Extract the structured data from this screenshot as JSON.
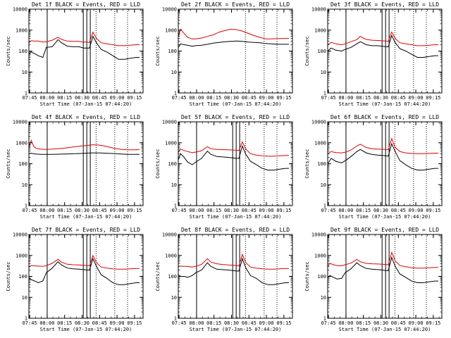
{
  "colors": {
    "events": "#000000",
    "lld": "#e00000",
    "axes": "#000000",
    "background": "#ffffff"
  },
  "figure": {
    "ylabel": "Counts/sec",
    "xlabel": "Start Time (07-Jan-15 07:44:20)",
    "x_tick_labels": [
      "07:45",
      "08:00",
      "08:15",
      "08:30",
      "08:45",
      "09:00",
      "09:15"
    ],
    "y_tick_labels": [
      "1",
      "10",
      "100",
      "1000",
      "10000"
    ]
  },
  "chart_data": [
    {
      "type": "line",
      "title": "Det 1f BLACK = Events, RED = LLD",
      "x_unit": "minutes after 07:44:20",
      "xlim": [
        0,
        98
      ],
      "yscale": "log",
      "ylim": [
        1,
        10000
      ],
      "x": [
        0,
        2,
        5,
        8,
        12,
        15,
        20,
        25,
        28,
        33,
        38,
        43,
        47,
        50,
        52,
        55,
        58,
        62,
        67,
        72,
        77,
        82,
        87,
        92,
        95
      ],
      "series": [
        {
          "name": "Events",
          "color": "#000000",
          "values": [
            70,
            90,
            75,
            60,
            50,
            150,
            160,
            350,
            250,
            170,
            160,
            160,
            140,
            140,
            140,
            500,
            250,
            120,
            90,
            60,
            40,
            40,
            45,
            50,
            50
          ]
        },
        {
          "name": "LLD",
          "color": "#e00000",
          "values": [
            250,
            310,
            300,
            300,
            270,
            280,
            330,
            460,
            360,
            300,
            290,
            290,
            270,
            270,
            260,
            800,
            400,
            250,
            220,
            200,
            180,
            180,
            190,
            200,
            200
          ]
        }
      ],
      "vlines_solid": [
        15.7,
        46.7,
        49.7,
        52.7
      ],
      "vlines_dashed": [
        57.7,
        73.7,
        84.7
      ]
    },
    {
      "type": "line",
      "title": "Det 2f BLACK = Events, RED = LLD",
      "x_unit": "minutes after 07:44:20",
      "xlim": [
        0,
        98
      ],
      "yscale": "log",
      "ylim": [
        1,
        10000
      ],
      "x": [
        0,
        2,
        5,
        8,
        12,
        15,
        20,
        25,
        30,
        35,
        40,
        45,
        50,
        55,
        60,
        65,
        70,
        75,
        80,
        85,
        90,
        95
      ],
      "series": [
        {
          "name": "Events",
          "color": "#000000",
          "values": [
            150,
            220,
            200,
            190,
            170,
            180,
            190,
            210,
            240,
            260,
            280,
            290,
            300,
            290,
            270,
            260,
            250,
            230,
            220,
            210,
            210,
            210
          ]
        },
        {
          "name": "LLD",
          "color": "#e00000",
          "values": [
            500,
            1100,
            700,
            450,
            380,
            380,
            420,
            500,
            600,
            800,
            950,
            1100,
            1050,
            900,
            700,
            550,
            450,
            380,
            380,
            390,
            400,
            400
          ]
        }
      ],
      "vlines_solid": [],
      "vlines_dashed": [
        57.7,
        73.7,
        84.7
      ]
    },
    {
      "type": "line",
      "title": "Det 3f BLACK = Events, RED = LLD",
      "x_unit": "minutes after 07:44:20",
      "xlim": [
        0,
        98
      ],
      "yscale": "log",
      "ylim": [
        1,
        10000
      ],
      "x": [
        0,
        3,
        7,
        12,
        15,
        20,
        25,
        28,
        33,
        38,
        43,
        47,
        50,
        52,
        55,
        58,
        62,
        67,
        72,
        77,
        82,
        87,
        92,
        95
      ],
      "series": [
        {
          "name": "Events",
          "color": "#000000",
          "values": [
            100,
            140,
            110,
            100,
            120,
            150,
            220,
            280,
            200,
            180,
            180,
            170,
            160,
            160,
            550,
            250,
            130,
            100,
            70,
            50,
            50,
            55,
            60,
            60
          ]
        },
        {
          "name": "LLD",
          "color": "#e00000",
          "values": [
            200,
            260,
            220,
            200,
            220,
            280,
            350,
            500,
            360,
            330,
            320,
            310,
            300,
            290,
            800,
            400,
            250,
            220,
            200,
            180,
            180,
            190,
            200,
            200
          ]
        }
      ],
      "vlines_solid": [
        15.7,
        46.7,
        49.7,
        52.7
      ],
      "vlines_dashed": [
        57.7,
        73.7,
        84.7
      ]
    },
    {
      "type": "line",
      "title": "Det 4f BLACK = Events, RED = LLD",
      "x_unit": "minutes after 07:44:20",
      "xlim": [
        0,
        98
      ],
      "yscale": "log",
      "ylim": [
        1,
        10000
      ],
      "x": [
        0,
        2,
        4,
        6,
        10,
        15,
        20,
        30,
        40,
        50,
        55,
        60,
        65,
        70,
        75,
        80,
        85,
        90,
        95
      ],
      "series": [
        {
          "name": "Events",
          "color": "#000000",
          "values": [
            300,
            320,
            300,
            290,
            280,
            280,
            280,
            290,
            300,
            320,
            330,
            330,
            320,
            310,
            300,
            290,
            280,
            280,
            280
          ]
        },
        {
          "name": "LLD",
          "color": "#e00000",
          "values": [
            600,
            1300,
            700,
            550,
            500,
            480,
            500,
            550,
            650,
            750,
            800,
            780,
            700,
            600,
            520,
            480,
            460,
            460,
            470
          ]
        }
      ],
      "vlines_solid": [
        15.7,
        46.7,
        49.7,
        52.7
      ],
      "vlines_dashed": [
        57.7,
        73.7,
        84.7
      ]
    },
    {
      "type": "line",
      "title": "Det 5f BLACK = Events, RED = LLD",
      "x_unit": "minutes after 07:44:20",
      "xlim": [
        0,
        98
      ],
      "yscale": "log",
      "ylim": [
        1,
        10000
      ],
      "x": [
        0,
        2,
        5,
        8,
        12,
        15,
        20,
        25,
        28,
        33,
        38,
        43,
        47,
        50,
        52,
        55,
        58,
        62,
        67,
        72,
        77,
        82,
        87,
        92,
        95
      ],
      "series": [
        {
          "name": "Events",
          "color": "#000000",
          "values": [
            150,
            300,
            200,
            120,
            90,
            120,
            180,
            400,
            280,
            220,
            210,
            200,
            190,
            180,
            180,
            700,
            280,
            130,
            90,
            60,
            50,
            50,
            55,
            60,
            60
          ]
        },
        {
          "name": "LLD",
          "color": "#e00000",
          "values": [
            350,
            500,
            430,
            380,
            340,
            360,
            420,
            650,
            520,
            480,
            470,
            460,
            450,
            440,
            430,
            1100,
            500,
            300,
            260,
            240,
            230,
            230,
            240,
            250,
            250
          ]
        }
      ],
      "vlines_solid": [
        15.7,
        46.7,
        49.7,
        52.7
      ],
      "vlines_dashed": [
        57.7,
        73.7,
        84.7
      ]
    },
    {
      "type": "line",
      "title": "Det 6f BLACK = Events, RED = LLD",
      "x_unit": "minutes after 07:44:20",
      "xlim": [
        0,
        98
      ],
      "yscale": "log",
      "ylim": [
        1,
        10000
      ],
      "x": [
        0,
        3,
        7,
        12,
        15,
        20,
        25,
        28,
        33,
        38,
        43,
        47,
        50,
        52,
        55,
        58,
        62,
        67,
        72,
        77,
        82,
        87,
        92,
        95
      ],
      "series": [
        {
          "name": "Events",
          "color": "#000000",
          "values": [
            100,
            180,
            130,
            110,
            140,
            220,
            380,
            480,
            330,
            280,
            260,
            250,
            240,
            230,
            900,
            380,
            140,
            90,
            60,
            50,
            50,
            55,
            60,
            60
          ]
        },
        {
          "name": "LLD",
          "color": "#e00000",
          "values": [
            300,
            380,
            340,
            330,
            350,
            450,
            700,
            850,
            600,
            520,
            500,
            490,
            480,
            470,
            1600,
            600,
            380,
            330,
            310,
            300,
            300,
            310,
            320,
            320
          ]
        }
      ],
      "vlines_solid": [
        15.7,
        46.7,
        49.7,
        52.7
      ],
      "vlines_dashed": [
        57.7,
        73.7,
        84.7
      ]
    },
    {
      "type": "line",
      "title": "Det 7f BLACK = Events, RED = LLD",
      "x_unit": "minutes after 07:44:20",
      "xlim": [
        0,
        98
      ],
      "yscale": "log",
      "ylim": [
        1,
        10000
      ],
      "x": [
        0,
        2,
        5,
        8,
        12,
        15,
        20,
        25,
        28,
        33,
        38,
        43,
        47,
        50,
        52,
        55,
        58,
        62,
        67,
        72,
        77,
        82,
        87,
        92,
        95
      ],
      "series": [
        {
          "name": "Events",
          "color": "#000000",
          "values": [
            80,
            70,
            60,
            50,
            60,
            150,
            250,
            500,
            350,
            250,
            230,
            220,
            210,
            200,
            200,
            700,
            300,
            120,
            80,
            50,
            40,
            40,
            45,
            50,
            50
          ]
        },
        {
          "name": "LLD",
          "color": "#e00000",
          "values": [
            280,
            330,
            320,
            310,
            300,
            330,
            420,
            650,
            480,
            380,
            360,
            350,
            340,
            330,
            320,
            1000,
            450,
            280,
            250,
            230,
            220,
            220,
            230,
            240,
            240
          ]
        }
      ],
      "vlines_solid": [
        15.7,
        46.7,
        49.7,
        52.7
      ],
      "vlines_dashed": [
        57.7,
        73.7,
        84.7
      ]
    },
    {
      "type": "line",
      "title": "Det 8f BLACK = Events, RED = LLD",
      "x_unit": "minutes after 07:44:20",
      "xlim": [
        0,
        98
      ],
      "yscale": "log",
      "ylim": [
        1,
        10000
      ],
      "x": [
        0,
        2,
        5,
        8,
        12,
        15,
        20,
        25,
        28,
        33,
        38,
        43,
        47,
        50,
        52,
        55,
        58,
        62,
        67,
        72,
        77,
        82,
        87,
        92,
        95
      ],
      "series": [
        {
          "name": "Events",
          "color": "#000000",
          "values": [
            120,
            100,
            100,
            90,
            110,
            150,
            200,
            450,
            300,
            220,
            210,
            200,
            190,
            180,
            180,
            700,
            250,
            110,
            80,
            50,
            40,
            40,
            45,
            50,
            50
          ]
        },
        {
          "name": "LLD",
          "color": "#e00000",
          "values": [
            300,
            310,
            300,
            300,
            280,
            300,
            380,
            700,
            480,
            400,
            370,
            350,
            340,
            330,
            320,
            1100,
            450,
            280,
            250,
            230,
            220,
            220,
            230,
            240,
            240
          ]
        }
      ],
      "vlines_solid": [
        15.7,
        46.7,
        49.7,
        52.7
      ],
      "vlines_dashed": [
        57.7,
        73.7,
        84.7
      ]
    },
    {
      "type": "line",
      "title": "Det 9f BLACK = Events, RED = LLD",
      "x_unit": "minutes after 07:44:20",
      "xlim": [
        0,
        98
      ],
      "yscale": "log",
      "ylim": [
        1,
        10000
      ],
      "x": [
        0,
        2,
        5,
        8,
        12,
        15,
        20,
        25,
        28,
        33,
        38,
        43,
        47,
        50,
        52,
        55,
        58,
        62,
        67,
        72,
        77,
        82,
        87,
        92,
        95
      ],
      "series": [
        {
          "name": "Events",
          "color": "#000000",
          "values": [
            90,
            110,
            90,
            75,
            80,
            150,
            230,
            450,
            330,
            240,
            220,
            210,
            200,
            190,
            190,
            800,
            300,
            130,
            90,
            60,
            50,
            50,
            55,
            60,
            60
          ]
        },
        {
          "name": "LLD",
          "color": "#e00000",
          "values": [
            300,
            420,
            360,
            330,
            320,
            360,
            430,
            650,
            500,
            420,
            400,
            390,
            380,
            370,
            360,
            1400,
            550,
            330,
            290,
            260,
            250,
            250,
            260,
            270,
            270
          ]
        }
      ],
      "vlines_solid": [
        15.7,
        46.7,
        49.7,
        52.7
      ],
      "vlines_dashed": [
        57.7,
        73.7,
        84.7
      ]
    }
  ]
}
